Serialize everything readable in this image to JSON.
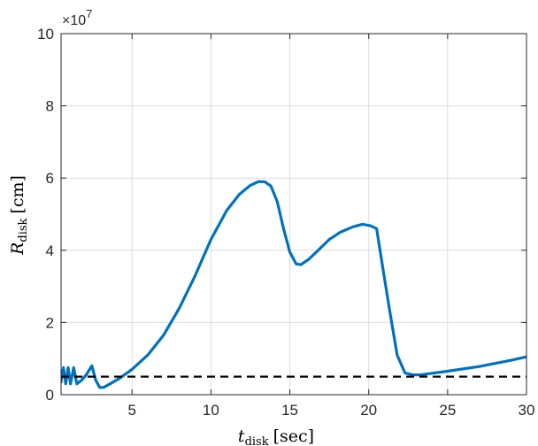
{
  "chart_data": {
    "type": "line",
    "title": "",
    "xlabel_main": "t",
    "xlabel_sub": "disk",
    "xlabel_unit": "[sec]",
    "ylabel_main": "R",
    "ylabel_sub": "disk",
    "ylabel_unit": "[cm]",
    "y_multiplier_base": "×10",
    "y_multiplier_exp": "7",
    "xlim": [
      0.5,
      30
    ],
    "ylim": [
      0,
      10
    ],
    "x_ticks": [
      5,
      10,
      15,
      20,
      25,
      30
    ],
    "y_ticks": [
      0,
      2,
      4,
      6,
      8,
      10
    ],
    "grid": true,
    "series": [
      {
        "color": "#0072BD",
        "style": "solid",
        "x": [
          0.5,
          0.65,
          0.8,
          0.95,
          1.1,
          1.3,
          1.5,
          1.8,
          2.1,
          2.45,
          2.7,
          2.95,
          3.2,
          3.6,
          4.2,
          5.0,
          6.0,
          7.0,
          8.0,
          9.0,
          10.0,
          11.0,
          11.8,
          12.5,
          13.0,
          13.4,
          13.8,
          14.2,
          14.6,
          15.0,
          15.4,
          15.7,
          16.2,
          16.8,
          17.5,
          18.2,
          19.0,
          19.6,
          20.1,
          20.5,
          20.9,
          21.3,
          21.8,
          22.3,
          22.8,
          23.3,
          23.8,
          25.0,
          27.0,
          29.0,
          30.0
        ],
        "y": [
          0.35,
          0.75,
          0.3,
          0.75,
          0.3,
          0.75,
          0.3,
          0.4,
          0.55,
          0.8,
          0.4,
          0.2,
          0.2,
          0.3,
          0.45,
          0.7,
          1.1,
          1.65,
          2.4,
          3.3,
          4.3,
          5.1,
          5.55,
          5.8,
          5.9,
          5.9,
          5.78,
          5.35,
          4.6,
          3.95,
          3.62,
          3.6,
          3.75,
          4.0,
          4.3,
          4.5,
          4.65,
          4.72,
          4.68,
          4.6,
          3.5,
          2.4,
          1.1,
          0.6,
          0.55,
          0.55,
          0.58,
          0.65,
          0.78,
          0.95,
          1.05
        ]
      },
      {
        "color": "#000000",
        "style": "dashed",
        "x": [
          0.5,
          30
        ],
        "y": [
          0.5,
          0.5
        ]
      }
    ]
  }
}
